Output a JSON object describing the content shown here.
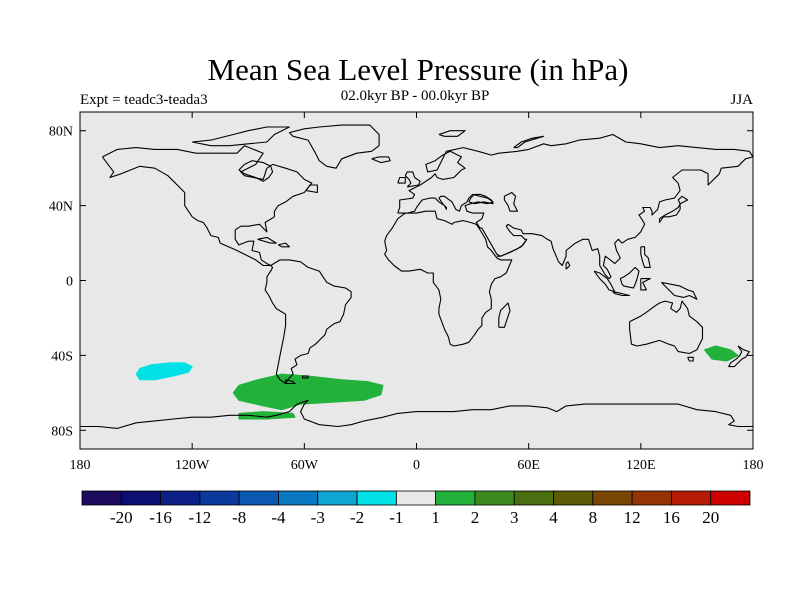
{
  "chart_data": {
    "type": "contour-map",
    "title": "Mean Sea Level Pressure (in hPa)",
    "left_string": "Expt = teadc3-teada3",
    "center_string": "02.0kyr BP - 00.0kyr BP",
    "right_string": "JJA",
    "x_range": [
      -180,
      180
    ],
    "y_range": [
      -90,
      90
    ],
    "x_ticks": [
      {
        "value": -180,
        "label": "180"
      },
      {
        "value": -120,
        "label": "120W"
      },
      {
        "value": -60,
        "label": "60W"
      },
      {
        "value": 0,
        "label": "0"
      },
      {
        "value": 60,
        "label": "60E"
      },
      {
        "value": 120,
        "label": "120E"
      },
      {
        "value": 180,
        "label": "180"
      }
    ],
    "y_ticks": [
      {
        "value": 80,
        "label": "80N"
      },
      {
        "value": 40,
        "label": "40N"
      },
      {
        "value": 0,
        "label": "0"
      },
      {
        "value": -40,
        "label": "40S"
      },
      {
        "value": -80,
        "label": "80S"
      }
    ],
    "colorbar": {
      "labels": [
        "-20",
        "-16",
        "-12",
        "-8",
        "-4",
        "-3",
        "-2",
        "-1",
        "1",
        "2",
        "3",
        "4",
        "8",
        "12",
        "16",
        "20"
      ],
      "colors": [
        "#1c0a5c",
        "#0d0f70",
        "#0b1f86",
        "#0a3a9c",
        "#0b58b0",
        "#0a78c2",
        "#0ea5d2",
        "#00e0e6",
        "#e8e8e8",
        "#22b23c",
        "#3c8a1e",
        "#4b6f10",
        "#5c5a06",
        "#7a4604",
        "#953304",
        "#b51b04",
        "#cc0000"
      ]
    },
    "regions": [
      {
        "name": "cyan-anomaly-south-pacific",
        "range": "-2 to -1",
        "color": "#00e0e6",
        "outline": [
          [
            -150,
            -50
          ],
          [
            -148,
            -47
          ],
          [
            -142,
            -45
          ],
          [
            -132,
            -44
          ],
          [
            -124,
            -44
          ],
          [
            -120,
            -46
          ],
          [
            -122,
            -49
          ],
          [
            -130,
            -51
          ],
          [
            -140,
            -53
          ],
          [
            -148,
            -53
          ]
        ]
      },
      {
        "name": "green-anomaly-south-atlantic",
        "range": "1 to 2",
        "color": "#22b23c",
        "outline": [
          [
            -98,
            -60
          ],
          [
            -95,
            -56
          ],
          [
            -85,
            -53
          ],
          [
            -72,
            -50
          ],
          [
            -58,
            -51
          ],
          [
            -40,
            -53
          ],
          [
            -26,
            -54
          ],
          [
            -18,
            -56
          ],
          [
            -19,
            -61
          ],
          [
            -28,
            -64
          ],
          [
            -45,
            -65
          ],
          [
            -62,
            -66
          ],
          [
            -72,
            -69
          ],
          [
            -82,
            -67
          ],
          [
            -95,
            -64
          ]
        ]
      },
      {
        "name": "green-anomaly-antarctic-coast",
        "range": "1 to 2",
        "color": "#22b23c",
        "outline": [
          [
            -95,
            -71
          ],
          [
            -82,
            -70
          ],
          [
            -66,
            -71
          ],
          [
            -65,
            -73
          ],
          [
            -80,
            -74
          ],
          [
            -95,
            -74
          ]
        ]
      },
      {
        "name": "green-anomaly-tasman",
        "range": "1 to 2",
        "color": "#22b23c",
        "outline": [
          [
            154,
            -37
          ],
          [
            160,
            -35
          ],
          [
            168,
            -37
          ],
          [
            172,
            -40
          ],
          [
            166,
            -43
          ],
          [
            158,
            -42
          ]
        ]
      }
    ]
  }
}
